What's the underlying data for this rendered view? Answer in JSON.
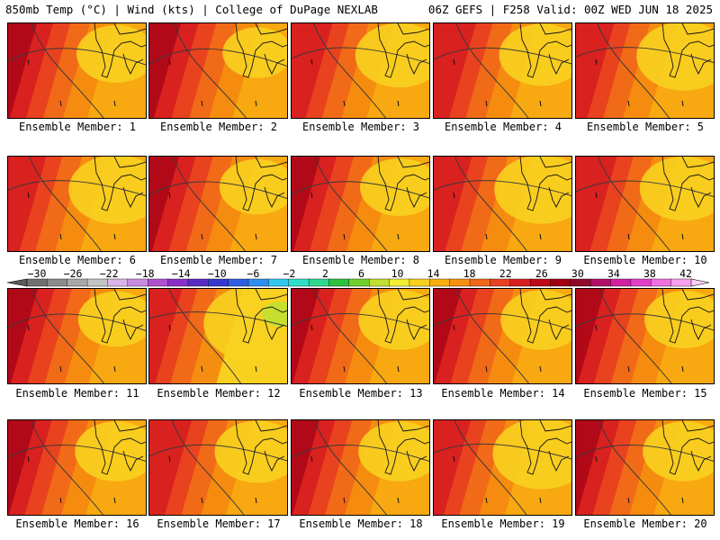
{
  "header": {
    "left_title": "850mb Temp (°C) | Wind (kts) | College of DuPage NEXLAB",
    "right_title": "06Z GEFS | F258 Valid: 00Z WED JUN 18 2025"
  },
  "colorbar": {
    "labels": [
      "−30",
      "−26",
      "−22",
      "−18",
      "−14",
      "−10",
      "−6",
      "−2",
      "2",
      "6",
      "10",
      "14",
      "18",
      "22",
      "26",
      "30",
      "34",
      "38",
      "42"
    ],
    "colors": [
      "#707070",
      "#8c8c8c",
      "#a8a8a8",
      "#c4c4c4",
      "#dab4e8",
      "#c88ce0",
      "#b050d0",
      "#8a2fc8",
      "#5a2bc0",
      "#3838d0",
      "#2f5fe0",
      "#2f8ff0",
      "#30c8f0",
      "#2fe0c8",
      "#2fd890",
      "#30c040",
      "#70d030",
      "#c0e030",
      "#f0f030",
      "#f8d020",
      "#f8b010",
      "#f89010",
      "#f06818",
      "#e84020",
      "#d82020",
      "#c00818",
      "#a00010",
      "#900828",
      "#b0106a",
      "#d020a0",
      "#e040c8",
      "#f070e0",
      "#f8a0f0"
    ]
  },
  "panels": [
    {
      "caption": "Ensemble Member: 1",
      "warmth": 0.6
    },
    {
      "caption": "Ensemble Member: 2",
      "warmth": 0.75
    },
    {
      "caption": "Ensemble Member: 3",
      "warmth": 0.45
    },
    {
      "caption": "Ensemble Member: 4",
      "warmth": 0.5
    },
    {
      "caption": "Ensemble Member: 5",
      "warmth": 0.35
    },
    {
      "caption": "Ensemble Member: 6",
      "warmth": 0.35
    },
    {
      "caption": "Ensemble Member: 7",
      "warmth": 0.65
    },
    {
      "caption": "Ensemble Member: 8",
      "warmth": 0.6
    },
    {
      "caption": "Ensemble Member: 9",
      "warmth": 0.35
    },
    {
      "caption": "Ensemble Member: 10",
      "warmth": 0.45
    },
    {
      "caption": "Ensemble Member: 11",
      "warmth": 0.65
    },
    {
      "caption": "Ensemble Member: 12",
      "warmth": 0.15
    },
    {
      "caption": "Ensemble Member: 13",
      "warmth": 0.55
    },
    {
      "caption": "Ensemble Member: 14",
      "warmth": 0.55
    },
    {
      "caption": "Ensemble Member: 15",
      "warmth": 0.6
    },
    {
      "caption": "Ensemble Member: 16",
      "warmth": 0.55
    },
    {
      "caption": "Ensemble Member: 17",
      "warmth": 0.5
    },
    {
      "caption": "Ensemble Member: 18",
      "warmth": 0.55
    },
    {
      "caption": "Ensemble Member: 19",
      "warmth": 0.3
    },
    {
      "caption": "Ensemble Member: 20",
      "warmth": 0.55
    }
  ]
}
